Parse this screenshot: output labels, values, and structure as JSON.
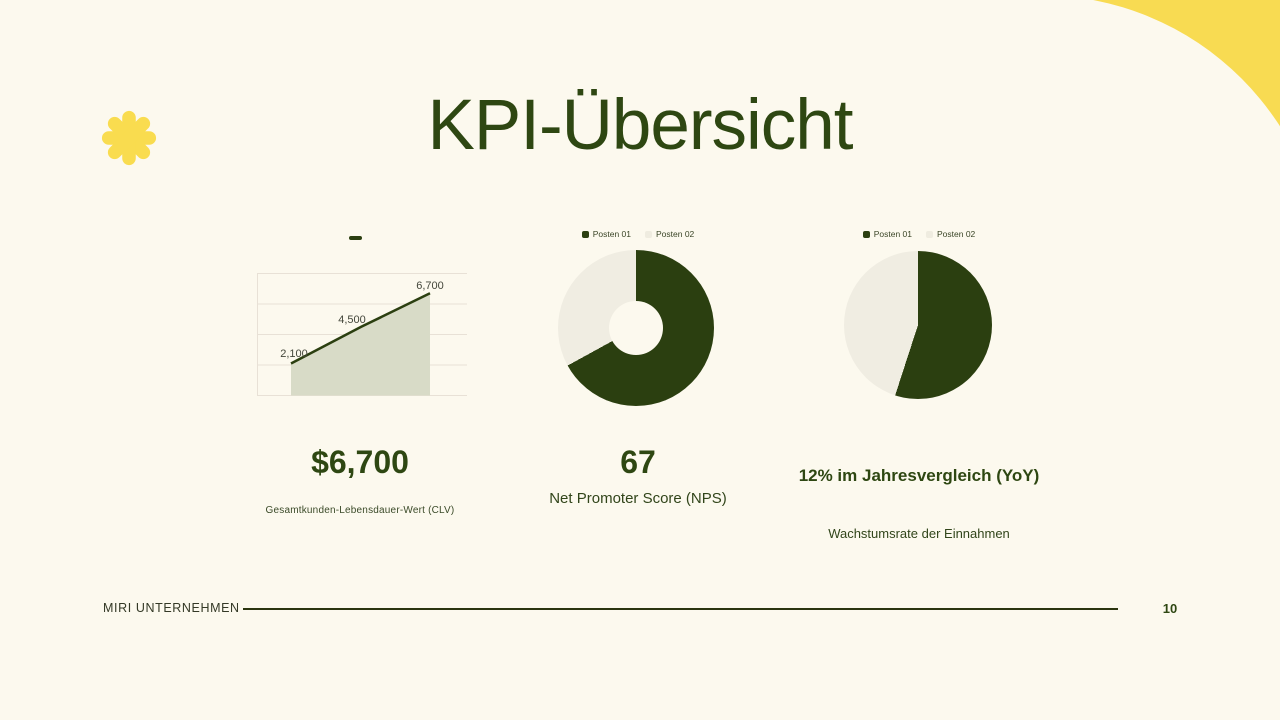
{
  "slide": {
    "title": "KPI-Übersicht",
    "footer": {
      "company": "MIRI UNTERNEHMEN",
      "page": "10"
    },
    "icons": {
      "decor": "asterisk-burst-icon",
      "corner": "quarter-circle-corner"
    },
    "colors": {
      "background": "#FCF9EE",
      "accent_yellow": "#F8DB52",
      "text_green": "#2E4712",
      "chart_green": "#2B3F10",
      "light_slice": "#F0EDE2",
      "area_fill": "#D8DBC7",
      "gridline": "#E8E1D6"
    }
  },
  "kpis": [
    {
      "stat": "$6,700",
      "caption": "Gesamtkunden-Lebensdauer-Wert (CLV)"
    },
    {
      "stat": "67",
      "caption": "Net Promoter Score (NPS)"
    },
    {
      "stat": "12% im Jahresvergleich (YoY)",
      "caption": "Wachstumsrate der Einnahmen"
    }
  ],
  "chart_data": [
    {
      "type": "area",
      "title": "",
      "x": [
        1,
        2,
        3
      ],
      "series": [
        {
          "name": "",
          "values": [
            2100,
            4500,
            6700
          ]
        }
      ],
      "data_labels": [
        "2,100",
        "4,500",
        "6,700"
      ],
      "ylim": [
        0,
        8000
      ],
      "grid": true,
      "gridline_step": 2000,
      "legend_position": "top",
      "colors": {
        "line": "#2B3F10",
        "fill": "#D8DBC7"
      }
    },
    {
      "type": "pie",
      "donut": true,
      "labels": [
        "Posten 01",
        "Posten 02"
      ],
      "values": [
        67,
        33
      ],
      "colors": [
        "#2B3F10",
        "#F0EDE2"
      ],
      "legend_position": "top",
      "start_angle": "12-oclock",
      "direction": "clockwise"
    },
    {
      "type": "pie",
      "donut": false,
      "labels": [
        "Posten 01",
        "Posten 02"
      ],
      "values": [
        55,
        45
      ],
      "colors": [
        "#2B3F10",
        "#F0EDE2"
      ],
      "legend_position": "top",
      "start_angle": "12-oclock",
      "direction": "clockwise"
    }
  ]
}
